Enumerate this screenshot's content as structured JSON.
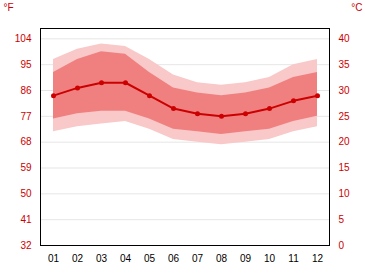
{
  "chart_data": {
    "type": "line",
    "categories": [
      "01",
      "02",
      "03",
      "04",
      "05",
      "06",
      "07",
      "08",
      "09",
      "10",
      "11",
      "12"
    ],
    "series": [
      {
        "type": "band",
        "color": "#f9c8c8",
        "low": [
          22.0,
          23.0,
          23.5,
          24.0,
          22.5,
          20.5,
          20.0,
          19.5,
          20.0,
          20.5,
          22.0,
          23.0
        ],
        "high": [
          36.0,
          38.0,
          39.0,
          38.5,
          36.0,
          33.0,
          31.5,
          31.0,
          31.5,
          32.5,
          35.0,
          36.0
        ]
      },
      {
        "type": "band",
        "color": "#f08080",
        "low": [
          24.5,
          25.5,
          26.0,
          26.0,
          24.5,
          22.5,
          22.0,
          21.5,
          22.0,
          22.5,
          24.0,
          25.0
        ],
        "high": [
          33.5,
          36.0,
          37.5,
          37.0,
          33.5,
          30.5,
          29.5,
          29.0,
          29.5,
          30.5,
          32.5,
          33.5
        ]
      },
      {
        "type": "line",
        "color": "#cc0000",
        "marker": "circle",
        "values": [
          29.0,
          30.5,
          31.5,
          31.5,
          29.0,
          26.5,
          25.5,
          25.0,
          25.5,
          26.5,
          28.0,
          29.0
        ]
      }
    ],
    "ylabel": "°C",
    "ylim": [
      0,
      42
    ],
    "yticks": [
      0,
      5,
      10,
      15,
      20,
      25,
      30,
      35,
      40
    ],
    "y2label": "°F",
    "y2lim": [
      32,
      107.6
    ],
    "y2ticks": [
      32,
      41,
      50,
      59,
      68,
      77,
      86,
      95,
      104
    ],
    "grid": true
  }
}
